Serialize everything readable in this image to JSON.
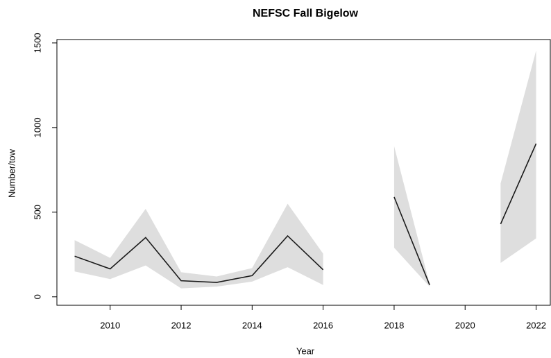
{
  "chart_data": {
    "type": "line",
    "title": "NEFSC Fall Bigelow",
    "x_label": "Year",
    "y_label": "Number/tow",
    "x": [
      2009,
      2010,
      2011,
      2012,
      2013,
      2014,
      2015,
      2016,
      2017,
      2018,
      2019,
      2020,
      2021,
      2022
    ],
    "values": [
      240,
      165,
      350,
      95,
      85,
      125,
      360,
      160,
      null,
      590,
      70,
      null,
      430,
      905
    ],
    "lower": [
      150,
      105,
      185,
      50,
      60,
      90,
      175,
      70,
      null,
      290,
      60,
      null,
      200,
      345
    ],
    "upper": [
      335,
      230,
      520,
      145,
      120,
      170,
      550,
      255,
      null,
      890,
      75,
      null,
      670,
      1455
    ],
    "color": "#1a1a1a",
    "band_color": "#dedede",
    "xlim": [
      2008.5,
      2022.4
    ],
    "xticks": [
      2010,
      2012,
      2014,
      2016,
      2018,
      2020,
      2022
    ],
    "ylim": [
      -50,
      1520
    ],
    "yticks": [
      0,
      500,
      1000,
      1500
    ]
  }
}
